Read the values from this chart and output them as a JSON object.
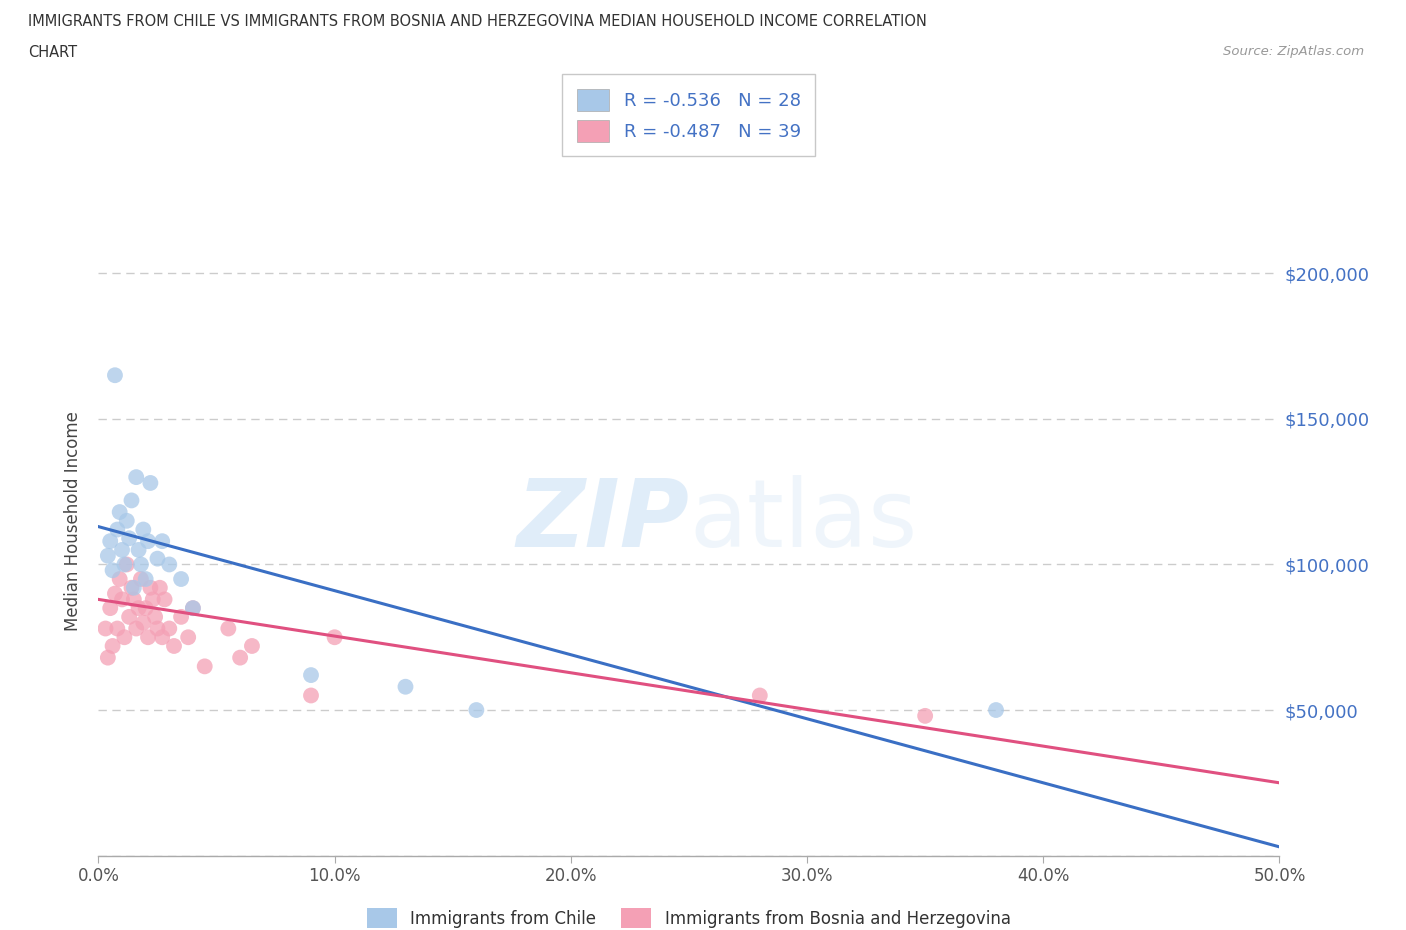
{
  "title_line1": "IMMIGRANTS FROM CHILE VS IMMIGRANTS FROM BOSNIA AND HERZEGOVINA MEDIAN HOUSEHOLD INCOME CORRELATION",
  "title_line2": "CHART",
  "source_text": "Source: ZipAtlas.com",
  "ylabel": "Median Household Income",
  "xlim": [
    0.0,
    0.5
  ],
  "ylim": [
    0,
    230000
  ],
  "xticks": [
    0.0,
    0.1,
    0.2,
    0.3,
    0.4,
    0.5
  ],
  "xticklabels": [
    "0.0%",
    "10.0%",
    "20.0%",
    "30.0%",
    "40.0%",
    "50.0%"
  ],
  "yticks": [
    0,
    50000,
    100000,
    150000,
    200000
  ],
  "right_yticklabels": [
    "",
    "$50,000",
    "$100,000",
    "$150,000",
    "$200,000"
  ],
  "background_color": "#ffffff",
  "watermark_zip": "ZIP",
  "watermark_atlas": "atlas",
  "legend_r1": "R = -0.536   N = 28",
  "legend_r2": "R = -0.487   N = 39",
  "blue_dot_color": "#a8c8e8",
  "pink_dot_color": "#f4a0b5",
  "blue_line_color": "#3a6fc4",
  "pink_line_color": "#e05080",
  "text_color": "#4472c4",
  "chile_label": "Immigrants from Chile",
  "bosnia_label": "Immigrants from Bosnia and Herzegovina",
  "chile_x": [
    0.004,
    0.005,
    0.006,
    0.007,
    0.008,
    0.009,
    0.01,
    0.011,
    0.012,
    0.013,
    0.014,
    0.015,
    0.016,
    0.017,
    0.018,
    0.019,
    0.02,
    0.021,
    0.022,
    0.025,
    0.027,
    0.03,
    0.035,
    0.04,
    0.09,
    0.13,
    0.16,
    0.38
  ],
  "chile_y": [
    103000,
    108000,
    98000,
    165000,
    112000,
    118000,
    105000,
    100000,
    115000,
    109000,
    122000,
    92000,
    130000,
    105000,
    100000,
    112000,
    95000,
    108000,
    128000,
    102000,
    108000,
    100000,
    95000,
    85000,
    62000,
    58000,
    50000,
    50000
  ],
  "bosnia_x": [
    0.003,
    0.004,
    0.005,
    0.006,
    0.007,
    0.008,
    0.009,
    0.01,
    0.011,
    0.012,
    0.013,
    0.014,
    0.015,
    0.016,
    0.017,
    0.018,
    0.019,
    0.02,
    0.021,
    0.022,
    0.023,
    0.024,
    0.025,
    0.026,
    0.027,
    0.028,
    0.03,
    0.032,
    0.035,
    0.038,
    0.04,
    0.045,
    0.055,
    0.06,
    0.065,
    0.09,
    0.1,
    0.28,
    0.35
  ],
  "bosnia_y": [
    78000,
    68000,
    85000,
    72000,
    90000,
    78000,
    95000,
    88000,
    75000,
    100000,
    82000,
    92000,
    88000,
    78000,
    85000,
    95000,
    80000,
    85000,
    75000,
    92000,
    88000,
    82000,
    78000,
    92000,
    75000,
    88000,
    78000,
    72000,
    82000,
    75000,
    85000,
    65000,
    78000,
    68000,
    72000,
    55000,
    75000,
    55000,
    48000
  ],
  "chile_trend_x0": 0.0,
  "chile_trend_y0": 113000,
  "chile_trend_x1": 0.5,
  "chile_trend_y1": 3000,
  "bosnia_trend_x0": 0.0,
  "bosnia_trend_y0": 88000,
  "bosnia_trend_x1": 0.5,
  "bosnia_trend_y1": 25000,
  "grid_color": "#cccccc",
  "grid_style": "--"
}
